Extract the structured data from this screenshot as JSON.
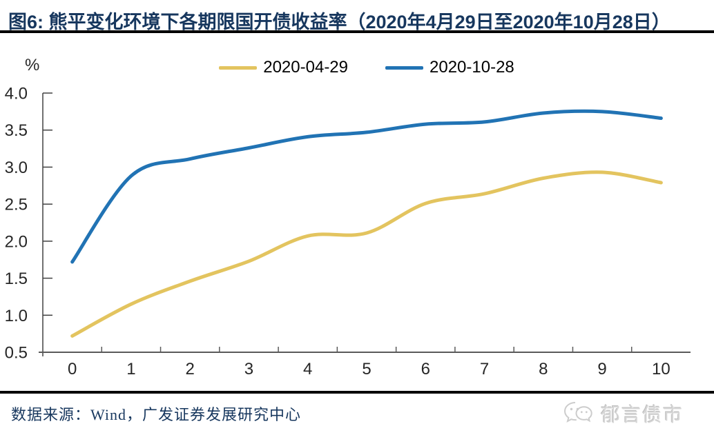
{
  "header": {
    "title": "图6: 熊平变化环境下各期限国开债收益率（2020年4月29日至2020年10月28日）"
  },
  "footer": {
    "source": "数据来源：Wind，广发证券发展研究中心",
    "watermark": "郁言债市"
  },
  "colors": {
    "title": "#17375E",
    "axis": "#595959",
    "tick": "#404040",
    "tick_label": "#262626",
    "rule": "#000000",
    "watermark": "#d6d6d6",
    "series_yellow": "#E3C45F",
    "series_blue": "#2173B4"
  },
  "chart_data": {
    "type": "line",
    "title": "图6: 熊平变化环境下各期限国开债收益率（2020年4月29日至2020年10月28日）",
    "unit_label": "%",
    "xlabel": "",
    "ylabel": "%",
    "x": [
      0,
      1,
      2,
      3,
      4,
      5,
      6,
      7,
      8,
      9,
      10
    ],
    "x_tick_labels": [
      "0",
      "1",
      "2",
      "3",
      "4",
      "5",
      "6",
      "7",
      "8",
      "9",
      "10"
    ],
    "y_ticks": [
      0.5,
      1.0,
      1.5,
      2.0,
      2.5,
      3.0,
      3.5,
      4.0
    ],
    "y_tick_labels": [
      "0.5",
      "1.0",
      "1.5",
      "2.0",
      "2.5",
      "3.0",
      "3.5",
      "4.0"
    ],
    "ylim": [
      0.5,
      4.0
    ],
    "grid": false,
    "smooth_lines": true,
    "legend_position": "top",
    "series": [
      {
        "name": "2020-04-29",
        "color": "#E3C45F",
        "values": [
          0.72,
          1.15,
          1.46,
          1.73,
          2.07,
          2.11,
          2.51,
          2.64,
          2.85,
          2.93,
          2.79
        ]
      },
      {
        "name": "2020-10-28",
        "color": "#2173B4",
        "values": [
          1.72,
          2.88,
          3.11,
          3.26,
          3.41,
          3.47,
          3.58,
          3.61,
          3.73,
          3.75,
          3.66
        ]
      }
    ]
  }
}
